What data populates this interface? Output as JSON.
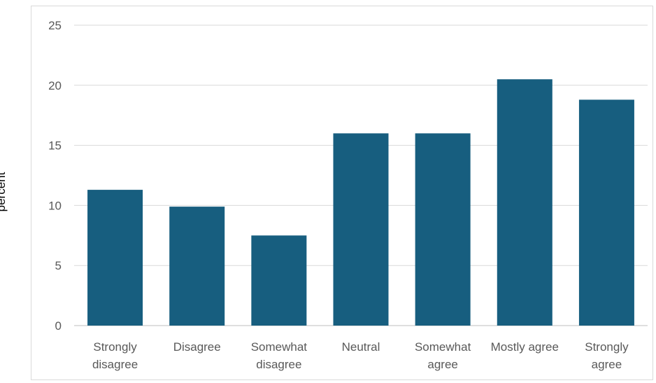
{
  "chart_data": {
    "type": "bar",
    "categories": [
      [
        "Strongly",
        "disagree"
      ],
      [
        "Disagree"
      ],
      [
        "Somewhat",
        "disagree"
      ],
      [
        "Neutral"
      ],
      [
        "Somewhat",
        "agree"
      ],
      [
        "Mostly agree"
      ],
      [
        "Strongly",
        "agree"
      ]
    ],
    "values": [
      11.3,
      9.9,
      7.5,
      16.0,
      16.0,
      20.5,
      18.8
    ],
    "ylabel": "percent",
    "xlabel": "",
    "title": "",
    "ylim": [
      0,
      25
    ],
    "yticks": [
      0,
      5,
      10,
      15,
      20,
      25
    ],
    "grid": true,
    "legend": "none",
    "colors": {
      "bar": "#175e7f",
      "grid": "#d9d9d9",
      "axis": "#bfbfbf",
      "tick_text": "#595959"
    }
  }
}
